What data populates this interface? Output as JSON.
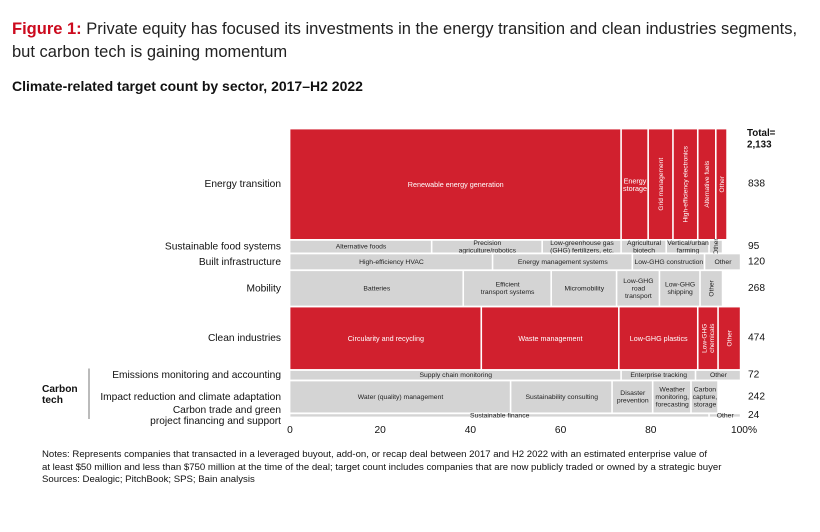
{
  "figure": {
    "label": "Figure 1:",
    "title": "Private equity has focused its investments in the energy transition and clean industries segments, but carbon tech is gaining momentum",
    "subtitle": "Climate-related target count by sector, 2017–H2 2022"
  },
  "chart_data": {
    "type": "marimekko",
    "total_label": "Total=\n2,133",
    "x_ticks": [
      "0",
      "20",
      "40",
      "60",
      "80",
      "100%"
    ],
    "group_label": "Carbon\ntech",
    "colors": {
      "highlight": "#d1202e",
      "other": "#d4d4d4"
    },
    "rows": [
      {
        "name": "Energy transition",
        "total": "838",
        "highlight": true,
        "segments": [
          {
            "label": "Renewable energy generation",
            "pct": 73.5
          },
          {
            "label": "Energy\nstorage",
            "pct": 6.0
          },
          {
            "label": "Grid management",
            "pct": 5.5,
            "vertical": true
          },
          {
            "label": "High-efficiency electronics",
            "pct": 5.5,
            "vertical": true
          },
          {
            "label": "Alternative fuels",
            "pct": 4.0,
            "vertical": true
          },
          {
            "label": "Other",
            "pct": 2.5,
            "vertical": true
          }
        ]
      },
      {
        "name": "Sustainable food systems",
        "total": "95",
        "highlight": false,
        "segments": [
          {
            "label": "Alternative foods",
            "pct": 31.5
          },
          {
            "label": "Precision\nagriculture/robotics",
            "pct": 24.5
          },
          {
            "label": "Low-greenhouse gas\n(GHG) fertilizers, etc.",
            "pct": 17.5
          },
          {
            "label": "Agricultural\nbiotech",
            "pct": 10.0
          },
          {
            "label": "Vertical/urban\nfarming",
            "pct": 9.5
          },
          {
            "label": "Other",
            "pct": 3.0,
            "vertical": true
          }
        ]
      },
      {
        "name": "Built infrastructure",
        "total": "120",
        "highlight": false,
        "segments": [
          {
            "label": "High-efficiency HVAC",
            "pct": 45.0
          },
          {
            "label": "Energy management systems",
            "pct": 31.0
          },
          {
            "label": "Low-GHG construction",
            "pct": 16.0
          },
          {
            "label": "Other",
            "pct": 8.0
          }
        ]
      },
      {
        "name": "Mobility",
        "total": "268",
        "highlight": false,
        "segments": [
          {
            "label": "Batteries",
            "pct": 38.5
          },
          {
            "label": "Efficient\ntransport systems",
            "pct": 19.5
          },
          {
            "label": "Micromobility",
            "pct": 14.5
          },
          {
            "label": "Low-GHG\nroad\ntransport",
            "pct": 9.5
          },
          {
            "label": "Low-GHG\nshipping",
            "pct": 9.0
          },
          {
            "label": "Other",
            "pct": 5.0,
            "vertical": true
          }
        ]
      },
      {
        "name": "Clean industries",
        "total": "474",
        "highlight": true,
        "segments": [
          {
            "label": "Circularity and recycling",
            "pct": 42.5
          },
          {
            "label": "Waste management",
            "pct": 30.5
          },
          {
            "label": "Low-GHG plastics",
            "pct": 17.5
          },
          {
            "label": "Low-GHG\nchemicals",
            "pct": 4.5,
            "vertical": true
          },
          {
            "label": "Other",
            "pct": 5.0,
            "vertical": true
          }
        ]
      },
      {
        "name": "Emissions monitoring and accounting",
        "total": "72",
        "highlight": false,
        "segments": [
          {
            "label": "Supply chain monitoring",
            "pct": 73.5
          },
          {
            "label": "Enterprise tracking",
            "pct": 16.5
          },
          {
            "label": "Other",
            "pct": 10.0
          }
        ]
      },
      {
        "name": "Impact reduction and climate adaptation",
        "total": "242",
        "highlight": false,
        "segments": [
          {
            "label": "Water (quality) management",
            "pct": 49.0
          },
          {
            "label": "Sustainability consulting",
            "pct": 22.5
          },
          {
            "label": "Disaster\nprevention",
            "pct": 9.0
          },
          {
            "label": "Weather\nmonitoring,\nforecasting",
            "pct": 8.5
          },
          {
            "label": "Carbon\ncapture,\nstorage",
            "pct": 6.0
          }
        ]
      },
      {
        "name": "Carbon trade and green\nproject financing and support",
        "total": "24",
        "highlight": false,
        "segments": [
          {
            "label": "Sustainable finance",
            "pct": 93.0
          },
          {
            "label": "Other",
            "pct": 7.0
          }
        ]
      }
    ]
  },
  "notes": [
    "Notes: Represents companies that transacted in a leveraged buyout, add-on, or recap deal between 2017 and H2 2022 with an estimated enterprise value of",
    "at least $50 million and less than $750 million at the time of the deal; target count includes companies that are now publicly traded or owned by a strategic buyer",
    "Sources: Dealogic; PitchBook; SPS; Bain analysis"
  ]
}
